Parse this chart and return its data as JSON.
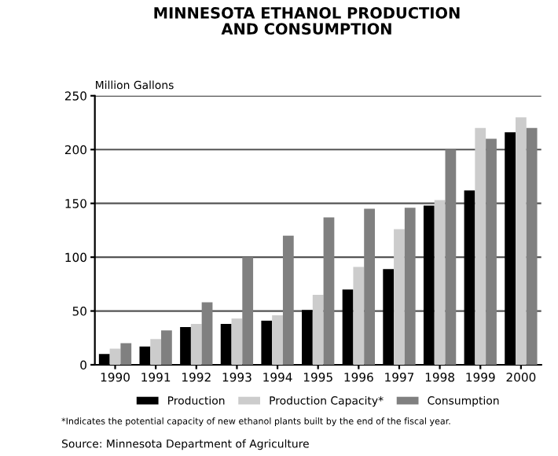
{
  "chart_data": {
    "type": "bar",
    "title": "MINNESOTA ETHANOL PRODUCTION\nAND CONSUMPTION",
    "ylabel": "Million Gallons",
    "categories": [
      "1990",
      "1991",
      "1992",
      "1993",
      "1994",
      "1995",
      "1996",
      "1997",
      "1998",
      "1999",
      "2000"
    ],
    "series": [
      {
        "name": "Production",
        "color": "#000000",
        "values": [
          10,
          17,
          35,
          38,
          41,
          51,
          70,
          89,
          148,
          162,
          216
        ]
      },
      {
        "name": "Production Capacity*",
        "color": "#cccccc",
        "values": [
          15,
          24,
          38,
          43,
          46,
          65,
          91,
          126,
          153,
          220,
          230
        ]
      },
      {
        "name": "Consumption",
        "color": "#808080",
        "values": [
          20,
          32,
          58,
          100,
          120,
          137,
          145,
          146,
          200,
          210,
          220
        ]
      }
    ],
    "ylim": [
      0,
      250
    ],
    "yticks": [
      0,
      50,
      100,
      150,
      200,
      250
    ],
    "grid": "y",
    "legend": "bottom",
    "annotations": [
      "*Indicates the potential capacity of new ethanol plants built by the end of the fiscal year.",
      "Source: Minnesota Department of Agriculture"
    ]
  }
}
